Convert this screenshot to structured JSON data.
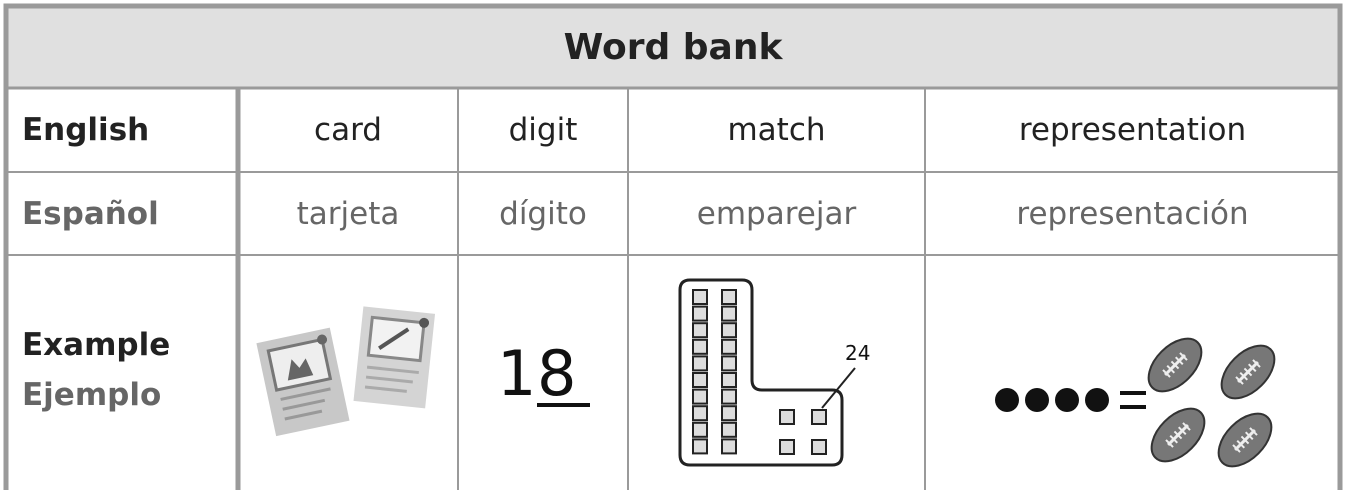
{
  "header": {
    "title": "Word bank"
  },
  "table": {
    "rows": [
      [
        "English",
        "card",
        "digit",
        "match",
        "representation"
      ],
      [
        "Español",
        "tarjeta",
        "dígito",
        "emparejar",
        "representación"
      ]
    ],
    "example": {
      "label": "Example",
      "label_es": "Ejemplo",
      "digit_example": [
        "1",
        "8"
      ],
      "match_label": "24"
    }
  }
}
